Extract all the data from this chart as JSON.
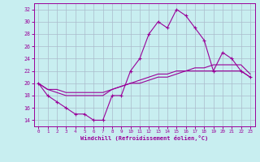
{
  "xlabel": "Windchill (Refroidissement éolien,°C)",
  "bg_color": "#c8eef0",
  "line_color": "#990099",
  "grid_color": "#aabbcc",
  "ylim": [
    13,
    33
  ],
  "xlim": [
    -0.5,
    23.5
  ],
  "yticks": [
    14,
    16,
    18,
    20,
    22,
    24,
    26,
    28,
    30,
    32
  ],
  "xticks": [
    0,
    1,
    2,
    3,
    4,
    5,
    6,
    7,
    8,
    9,
    10,
    11,
    12,
    13,
    14,
    15,
    16,
    17,
    18,
    19,
    20,
    21,
    22,
    23
  ],
  "line1_x": [
    0,
    1,
    2,
    3,
    4,
    5,
    6,
    7,
    8,
    9,
    10,
    11,
    12,
    13,
    14,
    15,
    16,
    17,
    18,
    19,
    20,
    21,
    22,
    23
  ],
  "line1_y": [
    20,
    18,
    17,
    16,
    15,
    15,
    14,
    14,
    18,
    18,
    22,
    24,
    28,
    30,
    29,
    32,
    31,
    29,
    27,
    22,
    25,
    24,
    22,
    21
  ],
  "line2_x": [
    0,
    1,
    2,
    3,
    4,
    5,
    6,
    7,
    8,
    9,
    10,
    11,
    12,
    13,
    14,
    15,
    16,
    17,
    18,
    19,
    20,
    21,
    22,
    23
  ],
  "line2_y": [
    20,
    19,
    19,
    18.5,
    18.5,
    18.5,
    18.5,
    18.5,
    19,
    19.5,
    20,
    20.5,
    21,
    21.5,
    21.5,
    22,
    22,
    22.5,
    22.5,
    23,
    23,
    23,
    23,
    21.5
  ],
  "line3_x": [
    0,
    1,
    2,
    3,
    4,
    5,
    6,
    7,
    8,
    9,
    10,
    11,
    12,
    13,
    14,
    15,
    16,
    17,
    18,
    19,
    20,
    21,
    22,
    23
  ],
  "line3_y": [
    20,
    19,
    18.5,
    18,
    18,
    18,
    18,
    18,
    19,
    19.5,
    20,
    20,
    20.5,
    21,
    21,
    21.5,
    22,
    22,
    22,
    22,
    22,
    22,
    22,
    21
  ]
}
